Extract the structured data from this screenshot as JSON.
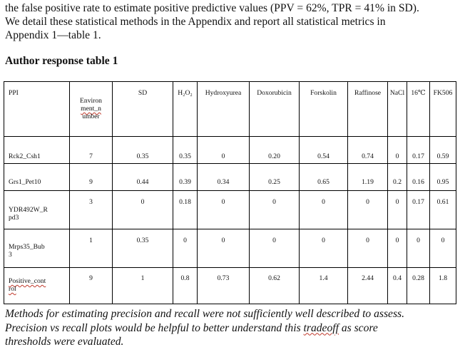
{
  "intro": {
    "line1": "the false positive rate to estimate positive predictive values (PPV = 62%, TPR = 41% in SD).",
    "line2": "We detail these statistical methods in the Appendix and report all statistical metrics in",
    "line3": "Appendix 1—table 1."
  },
  "table_title": "Author response table 1",
  "table": {
    "headers": {
      "ppi": "PPI",
      "env_1": "Environ",
      "env_2": "ment_n",
      "env_3": "umber",
      "sd": "SD",
      "h2o2": "H₂O₂",
      "hydroxyurea": "Hydroxyurea",
      "doxorubicin": "Doxorubicin",
      "forskolin": "Forskolin",
      "raffinose": "Raffinose",
      "nacl": "NaCl",
      "temp": "16℃",
      "fk506": "FK506"
    },
    "rows": [
      {
        "ppi_1": "Rck2_Csh1",
        "ppi_2": "",
        "env": "7",
        "sd": "0.35",
        "h2o2": "0.35",
        "hydroxyurea": "0",
        "doxorubicin": "0.20",
        "forskolin": "0.54",
        "raffinose": "0.74",
        "nacl": "0",
        "temp": "0.17",
        "fk506": "0.59"
      },
      {
        "ppi_1": "Grs1_Pet10",
        "ppi_2": "",
        "env": "9",
        "sd": "0.44",
        "h2o2": "0.39",
        "hydroxyurea": "0.34",
        "doxorubicin": "0.25",
        "forskolin": "0.65",
        "raffinose": "1.19",
        "nacl": "0.2",
        "temp": "0.16",
        "fk506": "0.95"
      },
      {
        "ppi_1": "YDR492W_R",
        "ppi_2": "pd3",
        "env": "3",
        "sd": "0",
        "h2o2": "0.18",
        "hydroxyurea": "0",
        "doxorubicin": "0",
        "forskolin": "0",
        "raffinose": "0",
        "nacl": "0",
        "temp": "0.17",
        "fk506": "0.61"
      },
      {
        "ppi_1": "Mrps35_Bub",
        "ppi_2": "3",
        "env": "1",
        "sd": "0.35",
        "h2o2": "0",
        "hydroxyurea": "0",
        "doxorubicin": "0",
        "forskolin": "0",
        "raffinose": "0",
        "nacl": "0",
        "temp": "0",
        "fk506": "0"
      },
      {
        "ppi_1": "Positive_cont",
        "ppi_2": "rol",
        "env": "9",
        "sd": "1",
        "h2o2": "0.8",
        "hydroxyurea": "0.73",
        "doxorubicin": "0.62",
        "forskolin": "1.4",
        "raffinose": "2.44",
        "nacl": "0.4",
        "temp": "0.28",
        "fk506": "1.8"
      }
    ]
  },
  "closing": {
    "line1": "Methods for estimating precision and recall were not sufficiently well described to assess.",
    "line2_a": "Precision vs recall plots would be helpful to better understand this ",
    "line2_b": "tradeoff",
    "line2_c": " as score",
    "line3": "thresholds were evaluated."
  }
}
